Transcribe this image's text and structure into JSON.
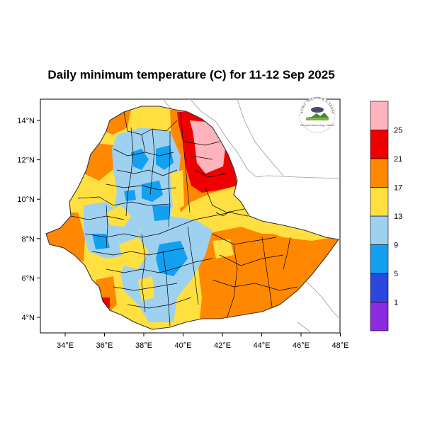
{
  "title": "Daily minimum temperature (C) for 11-12 Sep 2025",
  "map": {
    "x_ticks": [
      "34°E",
      "36°E",
      "38°E",
      "40°E",
      "42°E",
      "44°E",
      "46°E",
      "48°E"
    ],
    "y_ticks": [
      "14°N",
      "12°N",
      "10°N",
      "8°N",
      "6°N",
      "4°N"
    ]
  },
  "legend": {
    "bins": [
      {
        "color": "#8b2be2"
      },
      {
        "color": "#2b47e0"
      },
      {
        "color": "#14a0f0"
      },
      {
        "color": "#9ed0f0"
      },
      {
        "color": "#ffe040"
      },
      {
        "color": "#ff8800"
      },
      {
        "color": "#ee0000"
      },
      {
        "color": "#ffb3bd"
      }
    ],
    "labels": [
      "1",
      "5",
      "9",
      "13",
      "17",
      "21",
      "25"
    ]
  },
  "logo": {
    "arc_text": "ኢትዮጵያ ሚቲዎሮሎጂ ኢንስቲትዩት",
    "caption": "Ethiopian Meteorology Institute"
  }
}
